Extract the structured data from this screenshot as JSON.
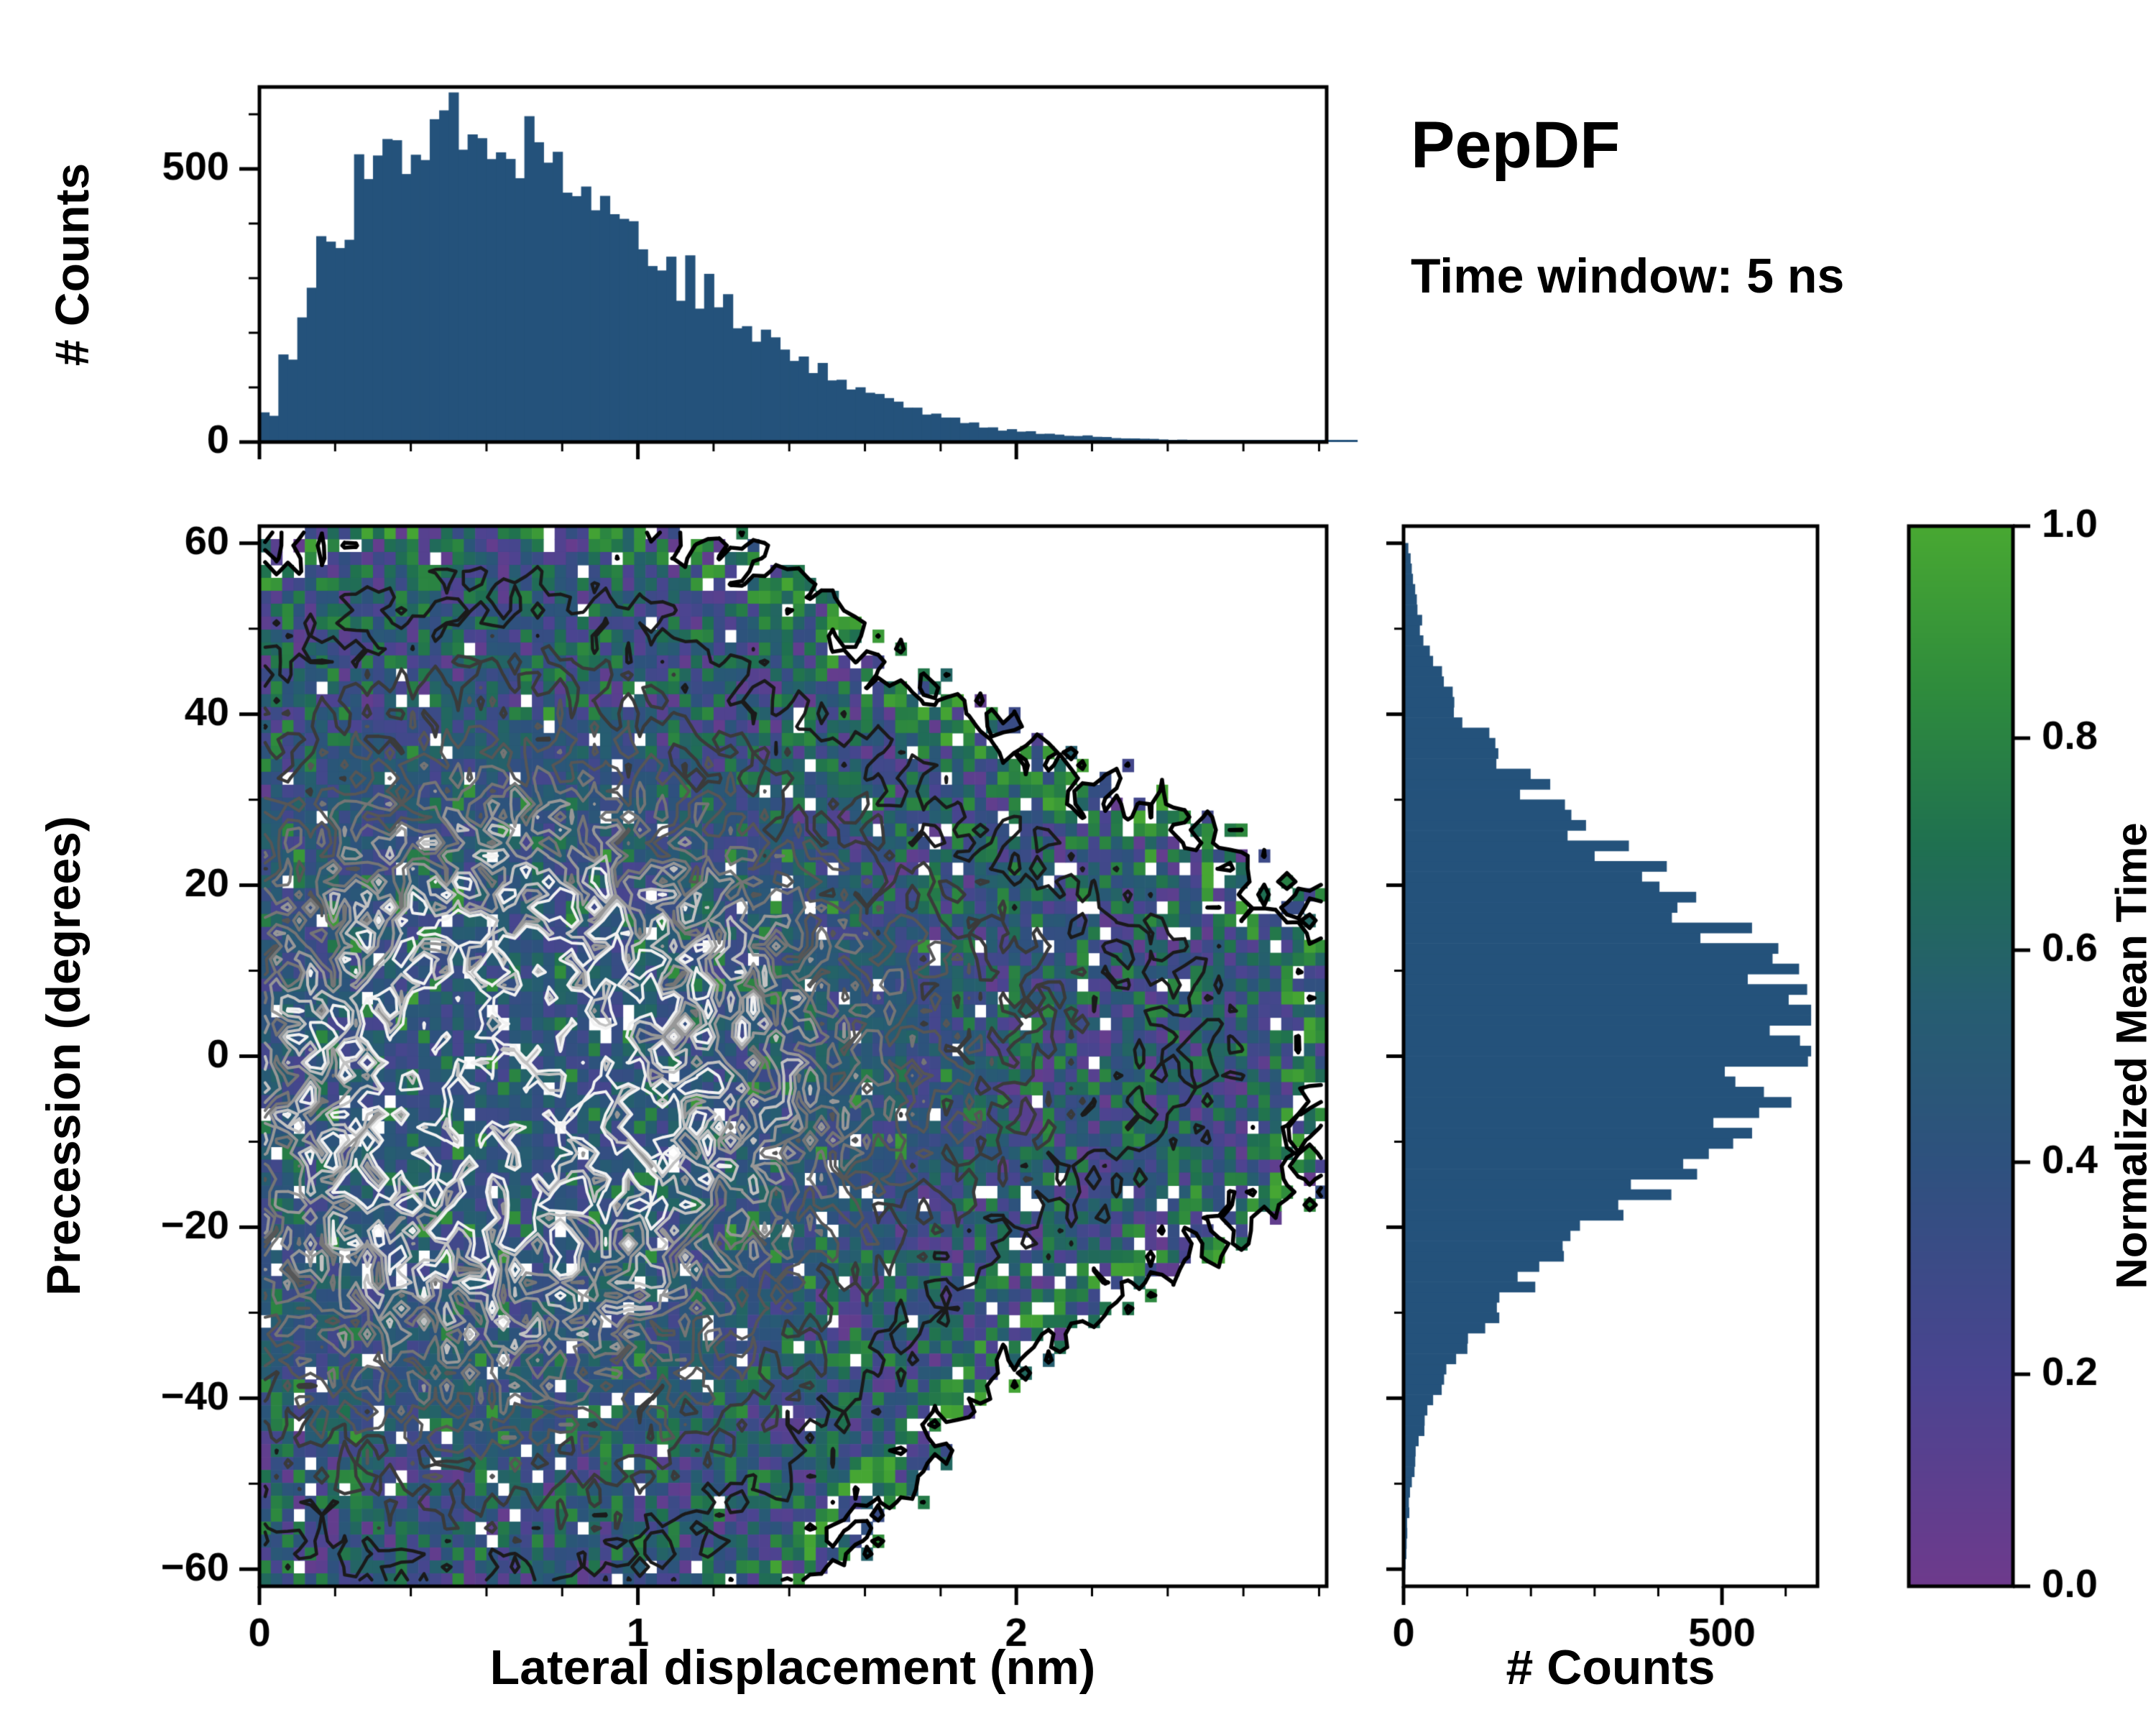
{
  "figure": {
    "title": "PepDF",
    "subtitle": "Time window: 5 ns",
    "background": "#ffffff"
  },
  "colors": {
    "histogram_bar": "#24527b",
    "axis": "#000000",
    "colormap": [
      {
        "t": 0.0,
        "hex": "#6e3a8c"
      },
      {
        "t": 0.2,
        "hex": "#4a4490"
      },
      {
        "t": 0.4,
        "hex": "#2e517e"
      },
      {
        "t": 0.55,
        "hex": "#265d71"
      },
      {
        "t": 0.7,
        "hex": "#1f7050"
      },
      {
        "t": 0.85,
        "hex": "#2f8c3c"
      },
      {
        "t": 1.0,
        "hex": "#48a832"
      }
    ],
    "contour_levels": [
      {
        "level": 0.035,
        "hex": "#000000",
        "width": 5.5
      },
      {
        "level": 0.1,
        "hex": "#1a1a1a",
        "width": 4.5
      },
      {
        "level": 0.2,
        "hex": "#3a3a3a",
        "width": 4.5
      },
      {
        "level": 0.32,
        "hex": "#565656",
        "width": 4
      },
      {
        "level": 0.45,
        "hex": "#757575",
        "width": 4
      },
      {
        "level": 0.58,
        "hex": "#979797",
        "width": 4
      },
      {
        "level": 0.72,
        "hex": "#c2c2c2",
        "width": 4
      },
      {
        "level": 0.85,
        "hex": "#f2f2f2",
        "width": 4
      }
    ]
  },
  "chart_data": [
    {
      "id": "top-histogram",
      "type": "bar",
      "ylabel": "# Counts",
      "xlim": [
        0,
        2.82
      ],
      "ylim": [
        0,
        650
      ],
      "yticks": [
        0,
        500
      ],
      "bin_start": 0,
      "bin_width": 0.05,
      "values": [
        55,
        150,
        255,
        335,
        405,
        465,
        520,
        560,
        585,
        600,
        610,
        595,
        575,
        560,
        540,
        510,
        480,
        450,
        420,
        390,
        360,
        330,
        300,
        272,
        245,
        218,
        195,
        172,
        152,
        133,
        116,
        100,
        86,
        73,
        62,
        52,
        43,
        36,
        30,
        24,
        20,
        16,
        13,
        11,
        9,
        7,
        6,
        5,
        4,
        3,
        3,
        2,
        2,
        2,
        1,
        1,
        1,
        1
      ]
    },
    {
      "id": "joint-heatmap",
      "type": "heatmap",
      "xlabel": "Lateral displacement (nm)",
      "ylabel": "Precession (degrees)",
      "xlim": [
        0,
        2.82
      ],
      "ylim": [
        -62,
        62
      ],
      "xticks": [
        0,
        1,
        2
      ],
      "yticks": [
        -60,
        -40,
        -20,
        0,
        20,
        40,
        60
      ],
      "value_label": "Normalized Mean Time",
      "value_range": [
        0,
        1
      ],
      "mean_value": 0.44,
      "grid": {
        "nx": 94,
        "ny": 82
      },
      "seed": 1234,
      "density": {
        "components": [
          {
            "cx": 0.62,
            "cy": -4,
            "sx": 0.55,
            "sy": 27,
            "w": 1.0
          },
          {
            "cx": 1.55,
            "cy": 2,
            "sx": 0.72,
            "sy": 17,
            "w": 0.22
          }
        ]
      }
    },
    {
      "id": "right-histogram",
      "type": "bar",
      "orientation": "horizontal",
      "xlabel": "# Counts",
      "xlim": [
        0,
        650
      ],
      "xticks": [
        0,
        500
      ],
      "bin_start": -60,
      "bin_width": 5,
      "values": [
        3,
        6,
        13,
        25,
        48,
        84,
        137,
        209,
        298,
        396,
        490,
        567,
        612,
        617,
        579,
        508,
        415,
        317,
        226,
        150,
        93,
        54,
        29,
        15,
        7
      ]
    },
    {
      "id": "colorbar",
      "type": "colorbar",
      "label": "Normalized Mean Time",
      "range": [
        0,
        1
      ],
      "ticks": [
        0,
        0.2,
        0.4,
        0.6,
        0.8,
        1
      ]
    }
  ]
}
